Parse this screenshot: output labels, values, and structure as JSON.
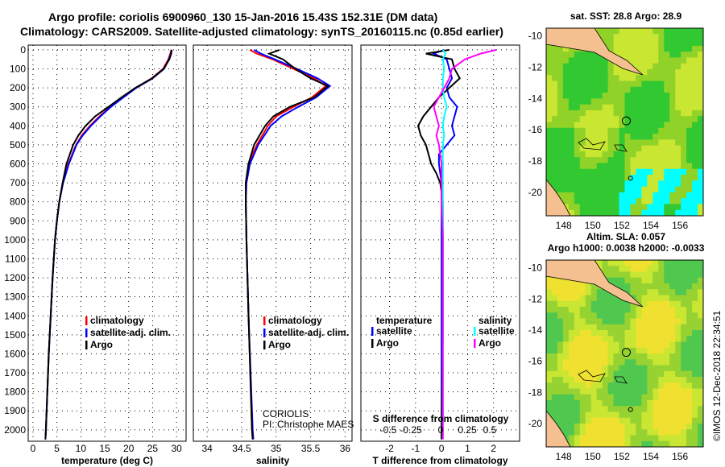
{
  "title_line1": "Argo profile: coriolis 6900960_130 15-Jan-2016 15.43S 152.31E (DM data)",
  "title_line2": "Climatology: CARS2009. Satellite-adjusted climatology: synTS_20160115.nc (0.85d earlier)",
  "credit": "©IMOS 12-Dec-2018 22:34:51",
  "colors": {
    "climatology": "#ff0000",
    "satellite": "#0000ff",
    "argo": "#000000",
    "sal_satellite": "#00ffff",
    "sal_argo": "#ff00ff"
  },
  "chart_data": [
    {
      "type": "line",
      "xlabel": "temperature (deg C)",
      "ylabel": "",
      "xlim": [
        -1,
        32
      ],
      "ylim": [
        2060,
        -25
      ],
      "xticks": [
        0,
        5,
        10,
        15,
        20,
        25,
        30
      ],
      "yticks": [
        0,
        100,
        200,
        300,
        400,
        500,
        600,
        700,
        800,
        900,
        1000,
        1100,
        1200,
        1300,
        1400,
        1500,
        1600,
        1700,
        1800,
        1900,
        2000
      ],
      "legend": [
        "climatology",
        "satellite-adj. clim.",
        "Argo"
      ],
      "legend_placement": "center",
      "depth": [
        0,
        20,
        50,
        100,
        150,
        200,
        250,
        300,
        350,
        400,
        450,
        500,
        600,
        700,
        800,
        900,
        1000,
        1200,
        1400,
        1600,
        1800,
        2000,
        2050
      ],
      "series": [
        {
          "name": "climatology",
          "color": "#ff0000",
          "values": [
            28.9,
            28.7,
            28.3,
            27.2,
            24.8,
            21.5,
            18.8,
            16.2,
            13.9,
            11.9,
            10.2,
            9.0,
            7.4,
            6.2,
            5.5,
            5.0,
            4.6,
            4.1,
            3.7,
            3.3,
            3.0,
            2.7,
            2.6
          ]
        },
        {
          "name": "satellite-adj. clim.",
          "color": "#0000ff",
          "values": [
            29.0,
            28.8,
            28.4,
            27.4,
            25.0,
            21.6,
            18.9,
            16.3,
            14.1,
            12.1,
            10.4,
            9.1,
            7.5,
            6.3,
            5.5,
            5.0,
            4.6,
            4.1,
            3.7,
            3.3,
            3.0,
            2.7,
            2.6
          ]
        },
        {
          "name": "Argo",
          "color": "#000000",
          "values": [
            29.0,
            28.9,
            28.5,
            27.3,
            24.9,
            21.4,
            18.5,
            15.8,
            13.0,
            11.0,
            9.5,
            8.4,
            7.0,
            6.2,
            5.5,
            5.0,
            4.6,
            4.1,
            3.7,
            3.3,
            3.0,
            2.7,
            2.6
          ]
        }
      ]
    },
    {
      "type": "line",
      "xlabel": "salinity",
      "xlim": [
        33.8,
        36.1
      ],
      "ylim": [
        2060,
        -25
      ],
      "xticks": [
        34,
        34.5,
        35,
        35.5,
        36
      ],
      "legend": [
        "climatology",
        "satellite-adj. clim.",
        "Argo"
      ],
      "annotation": [
        "CORIOLIS",
        "PI: Christophe MAES"
      ],
      "depth": [
        0,
        20,
        50,
        100,
        150,
        190,
        250,
        300,
        350,
        400,
        500,
        600,
        700,
        800,
        1000,
        1400,
        2000,
        2050
      ],
      "series": [
        {
          "name": "climatology",
          "color": "#ff0000",
          "values": [
            34.62,
            34.72,
            34.95,
            35.25,
            35.55,
            35.72,
            35.52,
            35.25,
            35.0,
            34.88,
            34.72,
            34.6,
            34.56,
            34.56,
            34.57,
            34.6,
            34.65,
            34.66
          ]
        },
        {
          "name": "satellite-adj. clim.",
          "color": "#0000ff",
          "values": [
            34.68,
            34.78,
            34.98,
            35.3,
            35.6,
            35.78,
            35.58,
            35.32,
            35.08,
            34.92,
            34.74,
            34.62,
            34.57,
            34.56,
            34.57,
            34.6,
            34.66,
            34.67
          ]
        },
        {
          "name": "Argo",
          "color": "#000000",
          "values": [
            35.05,
            34.9,
            35.1,
            35.28,
            35.5,
            35.75,
            35.55,
            35.2,
            34.96,
            34.84,
            34.68,
            34.6,
            34.56,
            34.56,
            34.57,
            34.6,
            34.65,
            34.66
          ]
        }
      ]
    },
    {
      "type": "line",
      "xlabel": "T difference from climatology",
      "x2label": "S difference from climatology",
      "xlim": [
        -3.1,
        3.0
      ],
      "ylim": [
        2060,
        -25
      ],
      "xticks": [
        -2,
        -1,
        0,
        1,
        2
      ],
      "x2ticks": [
        "-0.5",
        "-0.25",
        "0",
        "0.25",
        "0.5"
      ],
      "legend_temperature": {
        "title": "temperature",
        "items": [
          "satellite",
          "Argo"
        ]
      },
      "legend_salinity": {
        "title": "salinity",
        "items": [
          "satellite",
          "Argo"
        ]
      },
      "depth": [
        0,
        20,
        50,
        100,
        150,
        200,
        250,
        300,
        350,
        400,
        450,
        500,
        550,
        600,
        650,
        700,
        800,
        1000,
        1200,
        1500,
        2000,
        2050
      ],
      "series": [
        {
          "name": "temperature satellite",
          "color": "#0000ff",
          "values": [
            0.1,
            -0.3,
            0.2,
            0.3,
            0.4,
            0.2,
            0.3,
            0.6,
            0.5,
            0.4,
            0.5,
            0.2,
            -0.1,
            -0.1,
            -0.05,
            0,
            0,
            0,
            0,
            0,
            0,
            0
          ]
        },
        {
          "name": "temperature Argo",
          "color": "#000000",
          "values": [
            0.3,
            -0.6,
            0.4,
            0.5,
            0.7,
            0.3,
            -0.1,
            -0.4,
            -0.7,
            -0.9,
            -0.8,
            -0.6,
            -0.5,
            -0.4,
            -0.2,
            -0.05,
            0.05,
            0.05,
            0.05,
            0.05,
            0,
            0
          ]
        },
        {
          "name": "salinity satellite",
          "color": "#00ffff",
          "values": [
            0.05,
            0.15,
            0.05,
            0.1,
            0.05,
            0.05,
            0.1,
            0.2,
            0.1,
            0.05,
            0.1,
            0.05,
            0.05,
            0.05,
            0.05,
            0.05,
            0.05,
            0.05,
            0.05,
            0.05,
            0.05,
            0.05
          ]
        },
        {
          "name": "salinity Argo",
          "color": "#ff00ff",
          "values": [
            2.1,
            1.5,
            0.9,
            0.4,
            0.3,
            0.1,
            -0.1,
            -0.3,
            -0.2,
            -0.1,
            -0.2,
            -0.1,
            -0.05,
            0,
            0,
            0,
            0,
            0.05,
            0.05,
            0.05,
            0.05,
            0.05
          ]
        }
      ]
    },
    {
      "type": "heatmap",
      "title": "sat. SST: 28.8 Argo: 28.9",
      "xlim": [
        146.8,
        157.6
      ],
      "ylim": [
        -21.5,
        -9.5
      ],
      "xticks": [
        148,
        150,
        152,
        154,
        156
      ],
      "yticks": [
        -10,
        -12,
        -14,
        -16,
        -18,
        -20
      ],
      "argo_position": [
        152.31,
        -15.43
      ]
    },
    {
      "type": "heatmap",
      "title_line1": "Altim. SLA: 0.057",
      "title_line2": "Argo h1000: 0.0038 h2000: -0.0033",
      "xlim": [
        146.8,
        157.6
      ],
      "ylim": [
        -21.5,
        -9.5
      ],
      "xticks": [
        148,
        150,
        152,
        154,
        156
      ],
      "yticks": [
        -10,
        -12,
        -14,
        -16,
        -18,
        -20
      ],
      "argo_position": [
        152.31,
        -15.43
      ]
    }
  ]
}
